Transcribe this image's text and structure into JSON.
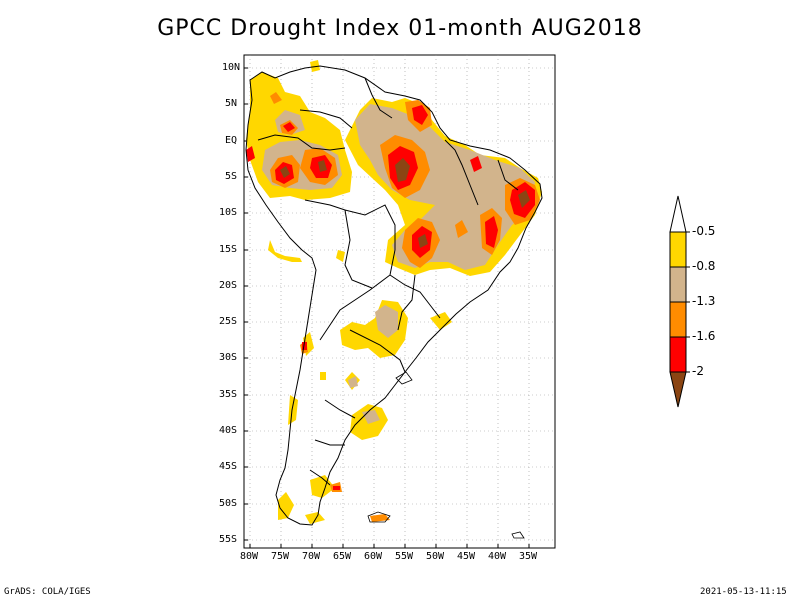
{
  "title": "GPCC Drought Index 01-month AUG2018",
  "footer": {
    "left": "GrADS: COLA/IGES",
    "right": "2021-05-13-11:15"
  },
  "lat_labels": [
    "10N",
    "5N",
    "EQ",
    "5S",
    "10S",
    "15S",
    "20S",
    "25S",
    "30S",
    "35S",
    "40S",
    "45S",
    "50S",
    "55S"
  ],
  "lon_labels": [
    "80W",
    "75W",
    "70W",
    "65W",
    "60W",
    "55W",
    "50W",
    "45W",
    "40W",
    "35W"
  ],
  "colorbar": {
    "labels": [
      "-0.5",
      "-0.8",
      "-1.3",
      "-1.6",
      "-2"
    ],
    "colors": {
      "top_arrow": "#ffffff",
      "c1": "#ffd700",
      "c2": "#d2b48c",
      "c3": "#ff8c00",
      "c4": "#ff0000",
      "bottom_arrow": "#8b4513"
    }
  },
  "legend_colors": {
    "yellow": "#ffd700",
    "tan": "#d2b48c",
    "orange": "#ff8c00",
    "red": "#ff0000",
    "brown": "#8b4513"
  }
}
